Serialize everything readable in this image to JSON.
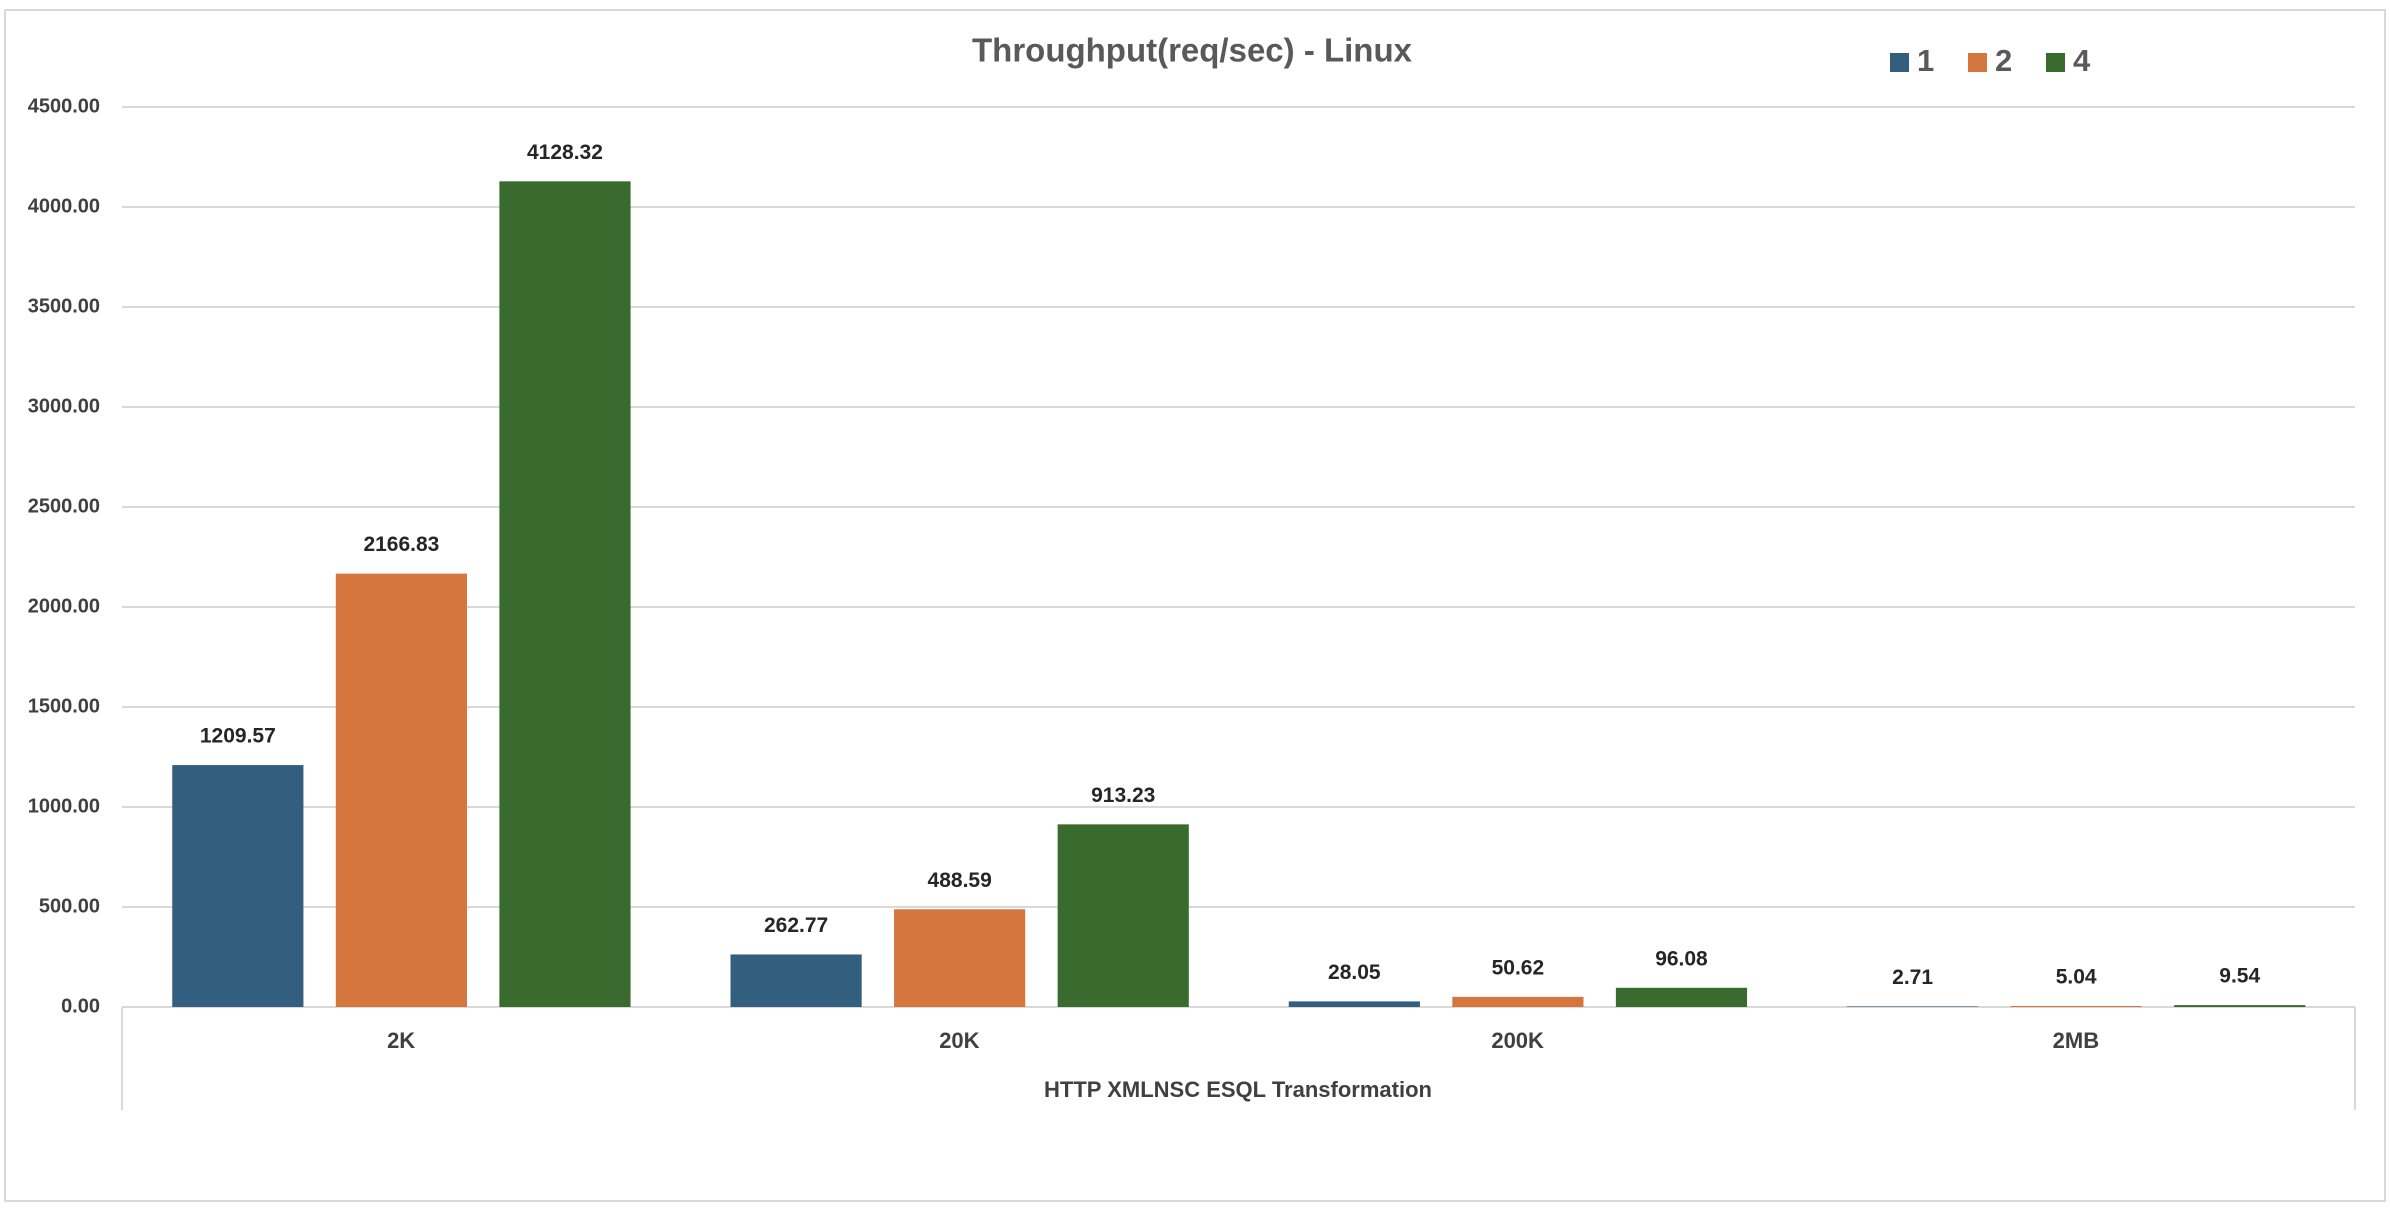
{
  "chart_data": {
    "type": "bar",
    "title": "Throughput(req/sec) - Linux",
    "x_label": "HTTP XMLNSC ESQL Transformation",
    "categories": [
      "2K",
      "20K",
      "200K",
      "2MB"
    ],
    "series": [
      {
        "name": "1",
        "color": "#335E7E",
        "values": [
          1209.57,
          262.77,
          28.05,
          2.71
        ]
      },
      {
        "name": "2",
        "color": "#D5763F",
        "values": [
          2166.83,
          488.59,
          50.62,
          5.04
        ]
      },
      {
        "name": "4",
        "color": "#3A6B2E",
        "values": [
          4128.32,
          913.23,
          96.08,
          9.54
        ]
      }
    ],
    "ylim": [
      0,
      4500
    ],
    "yticks": [
      {
        "value": 0,
        "label": "0.00"
      },
      {
        "value": 500,
        "label": "500.00"
      },
      {
        "value": 1000,
        "label": "1000.00"
      },
      {
        "value": 1500,
        "label": "1500.00"
      },
      {
        "value": 2000,
        "label": "2000.00"
      },
      {
        "value": 2500,
        "label": "2500.00"
      },
      {
        "value": 3000,
        "label": "3000.00"
      },
      {
        "value": 3500,
        "label": "3500.00"
      },
      {
        "value": 4000,
        "label": "4000.00"
      },
      {
        "value": 4500,
        "label": "4500.00"
      }
    ],
    "grid": true,
    "legend": "top-right"
  }
}
